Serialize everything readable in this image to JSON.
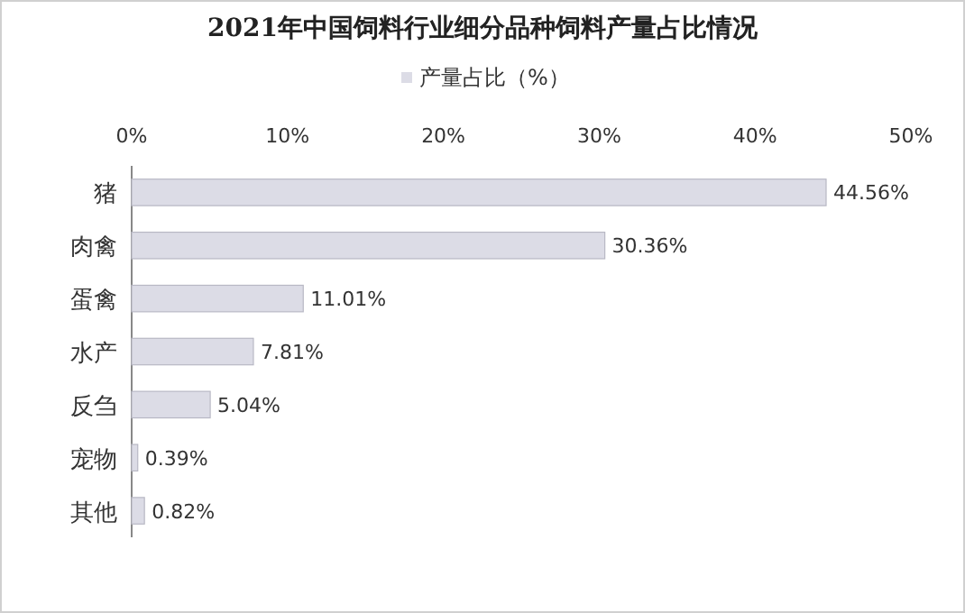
{
  "chart_data": {
    "type": "bar",
    "orientation": "horizontal",
    "title": "2021年中国饲料行业细分品种饲料产量占比情况",
    "categories": [
      "猪",
      "肉禽",
      "蛋禽",
      "水产",
      "反刍",
      "宠物",
      "其他"
    ],
    "series": [
      {
        "name": "产量占比（%）",
        "color": "#dcdce6",
        "values": [
          44.56,
          30.36,
          11.01,
          7.81,
          5.04,
          0.39,
          0.82
        ],
        "value_labels": [
          "44.56%",
          "30.36%",
          "11.01%",
          "7.81%",
          "5.04%",
          "0.39%",
          "0.82%"
        ]
      }
    ],
    "xlim": [
      0,
      50
    ],
    "xticks": [
      {
        "value": 0,
        "label": "0%"
      },
      {
        "value": 10,
        "label": "10%"
      },
      {
        "value": 20,
        "label": "20%"
      },
      {
        "value": 30,
        "label": "30%"
      },
      {
        "value": 40,
        "label": "40%"
      },
      {
        "value": 50,
        "label": "50%"
      }
    ],
    "legend": "top",
    "grid": false
  }
}
